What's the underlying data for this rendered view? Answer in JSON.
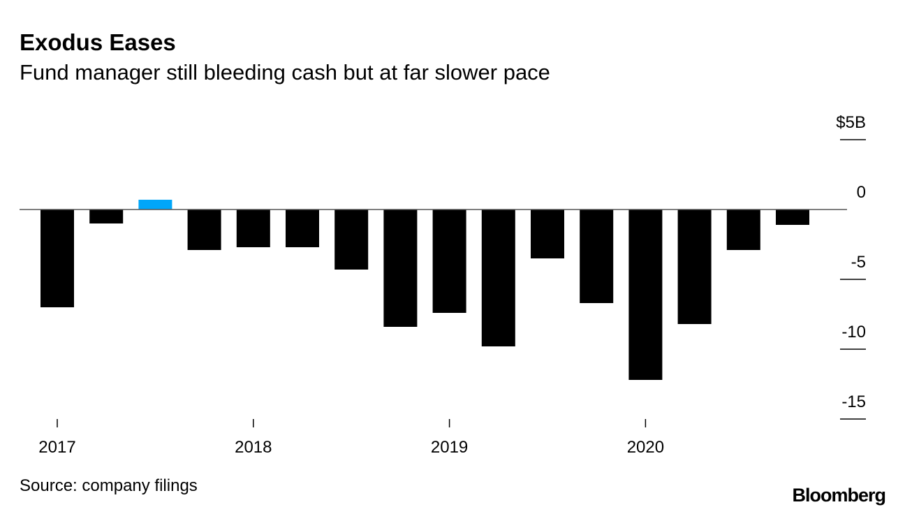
{
  "chart_data": {
    "type": "bar",
    "title": "Exodus Eases",
    "subtitle": "Fund manager still bleeding cash but at far slower pace",
    "source": "Source: company filings",
    "brand": "Bloomberg",
    "categories": [
      "2017 Q1",
      "2017 Q2",
      "2017 Q3",
      "2017 Q4",
      "2018 Q1",
      "2018 Q2",
      "2018 Q3",
      "2018 Q4",
      "2019 Q1",
      "2019 Q2",
      "2019 Q3",
      "2019 Q4",
      "2020 Q1",
      "2020 Q2",
      "2020 Q3",
      "2020 Q4"
    ],
    "values": [
      -7.0,
      -1.0,
      0.7,
      -2.9,
      -2.7,
      -2.7,
      -4.3,
      -8.4,
      -7.4,
      -9.8,
      -3.5,
      -6.7,
      -12.2,
      -8.2,
      -2.9,
      -1.1
    ],
    "colors": {
      "negative": "#000000",
      "positive": "#00a6f9"
    },
    "ylim": [
      -15,
      5
    ],
    "yticks": [
      5,
      0,
      -5,
      -10,
      -15
    ],
    "ytick_labels": [
      "$5B",
      "0",
      "-5",
      "-10",
      "-15"
    ],
    "xtick_labels": [
      "2017",
      "2018",
      "2019",
      "2020"
    ],
    "xlabel": "",
    "ylabel": "",
    "axis_position": "right",
    "grid": false
  }
}
